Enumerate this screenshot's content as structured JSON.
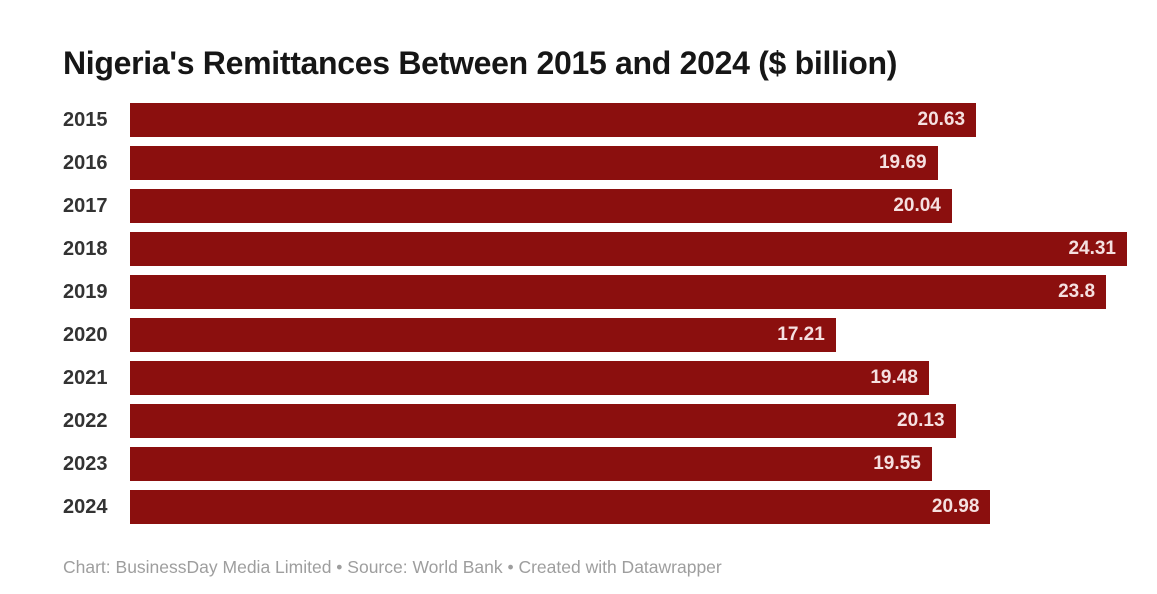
{
  "chart_data": {
    "type": "bar",
    "orientation": "horizontal",
    "title": "Nigeria's Remittances Between 2015 and 2024 ($ billion)",
    "categories": [
      "2015",
      "2016",
      "2017",
      "2018",
      "2019",
      "2020",
      "2021",
      "2022",
      "2023",
      "2024"
    ],
    "values": [
      20.63,
      19.69,
      20.04,
      24.31,
      23.8,
      17.21,
      19.48,
      20.13,
      19.55,
      20.98
    ],
    "value_labels": [
      "20.63",
      "19.69",
      "20.04",
      "24.31",
      "23.8",
      "17.21",
      "19.48",
      "20.13",
      "19.55",
      "20.98"
    ],
    "xlabel": "",
    "ylabel": "",
    "xlim": [
      0,
      24.31
    ],
    "grid": false,
    "legend": false,
    "value_label_position": "inside-end"
  },
  "footer": {
    "text": "Chart: BusinessDay Media Limited • Source: World Bank • Created with Datawrapper"
  },
  "colors": {
    "bar": "#8B0F0E",
    "value_label": "#F5E0E0",
    "title": "#161616",
    "year_label": "#333333",
    "footer": "#9E9E9E",
    "background": "#FFFFFF"
  }
}
